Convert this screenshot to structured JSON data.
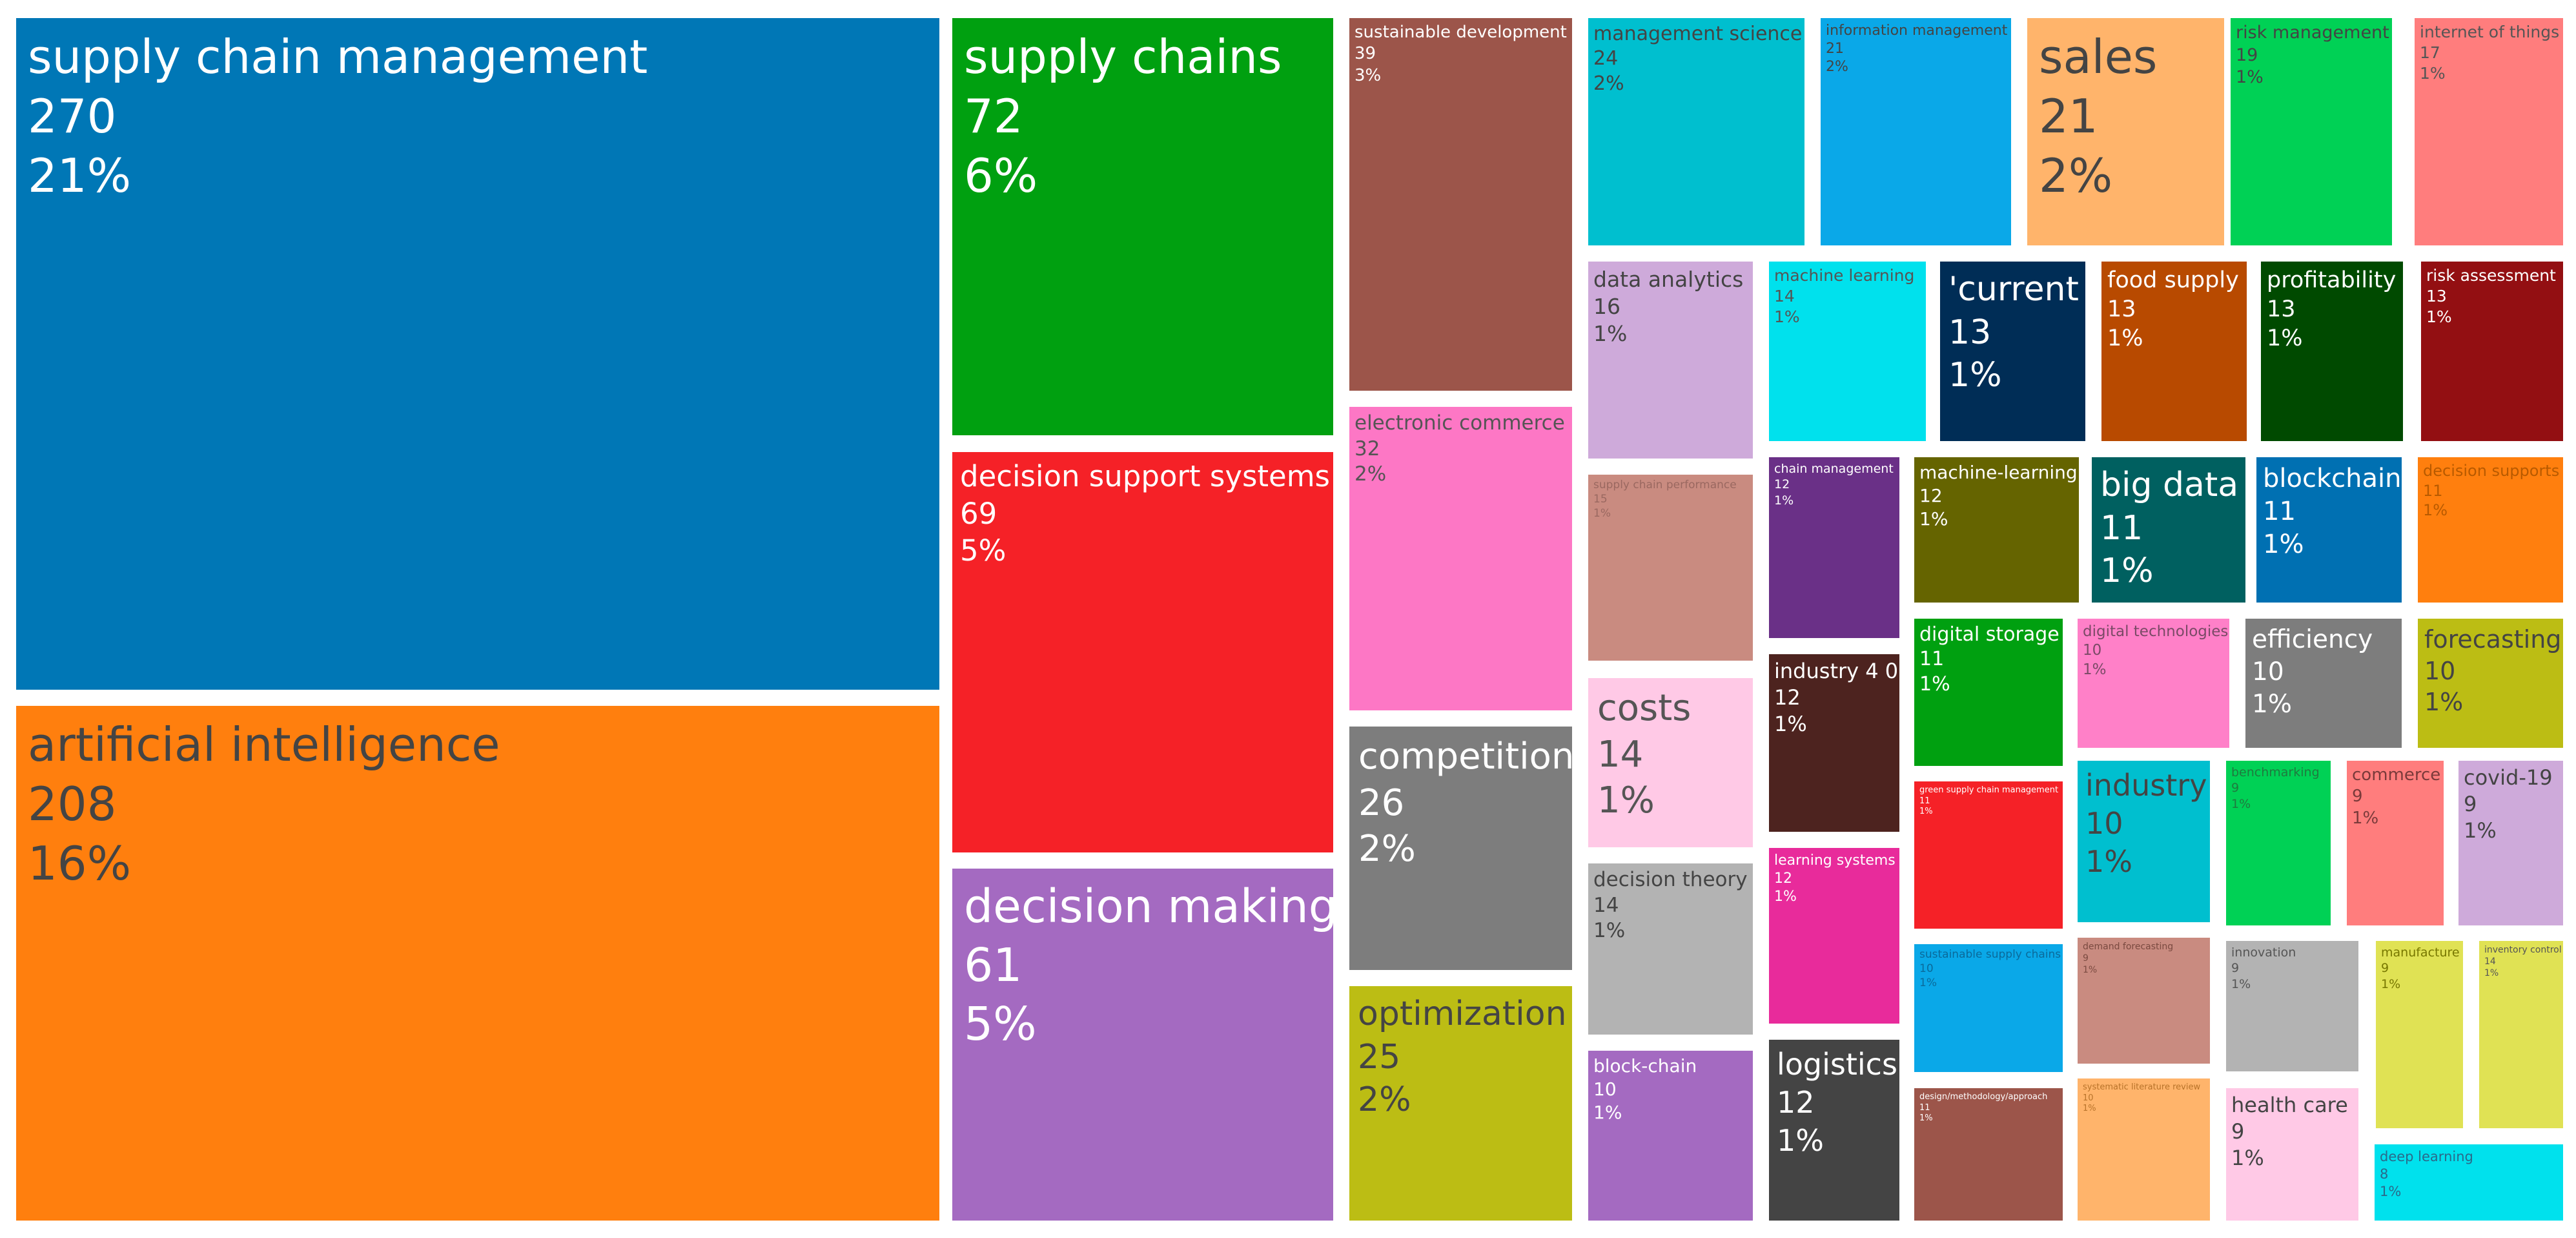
{
  "chart_data": {
    "type": "treemap",
    "title": "",
    "items": [
      {
        "label": "supply chain management",
        "value": 270,
        "percent": "21%",
        "color": "#0077b6",
        "text_color": "#ffffff"
      },
      {
        "label": "artificial intelligence",
        "value": 208,
        "percent": "16%",
        "color": "#ff7f0e",
        "text_color": "#444444"
      },
      {
        "label": "supply chains",
        "value": 72,
        "percent": "6%",
        "color": "#00a010",
        "text_color": "#ffffff"
      },
      {
        "label": "decision support systems",
        "value": 69,
        "percent": "5%",
        "color": "#f52127",
        "text_color": "#ffffff"
      },
      {
        "label": "decision making",
        "value": 61,
        "percent": "5%",
        "color": "#a46ac1",
        "text_color": "#ffffff"
      },
      {
        "label": "sustainable development",
        "value": 39,
        "percent": "3%",
        "color": "#9c554a",
        "text_color": "#ffffff"
      },
      {
        "label": "electronic commerce",
        "value": 32,
        "percent": "2%",
        "color": "#fd77c5",
        "text_color": "#555555"
      },
      {
        "label": "competition",
        "value": 26,
        "percent": "2%",
        "color": "#7d7d7d",
        "text_color": "#ffffff"
      },
      {
        "label": "optimization",
        "value": 25,
        "percent": "2%",
        "color": "#bcbd14",
        "text_color": "#444444"
      },
      {
        "label": "management science",
        "value": 24,
        "percent": "2%",
        "color": "#00bfcf",
        "text_color": "#444444"
      },
      {
        "label": "information management",
        "value": 21,
        "percent": "2%",
        "color": "#0aa8e8",
        "text_color": "#444444"
      },
      {
        "label": "sales",
        "value": 21,
        "percent": "2%",
        "color": "#ffb46b",
        "text_color": "#444444"
      },
      {
        "label": "risk management",
        "value": 19,
        "percent": "1%",
        "color": "#00d155",
        "text_color": "#444444"
      },
      {
        "label": "internet of things",
        "value": 17,
        "percent": "1%",
        "color": "#ff7d7d",
        "text_color": "#555555"
      },
      {
        "label": "data analytics",
        "value": 16,
        "percent": "1%",
        "color": "#ceaada",
        "text_color": "#444444"
      },
      {
        "label": "machine learning",
        "value": 14,
        "percent": "1%",
        "color": "#00e1ed",
        "text_color": "#555555"
      },
      {
        "label": "'current",
        "value": 13,
        "percent": "1%",
        "color": "#002d56",
        "text_color": "#ffffff"
      },
      {
        "label": "food supply",
        "value": 13,
        "percent": "1%",
        "color": "#b84a00",
        "text_color": "#ffffff"
      },
      {
        "label": "profitability",
        "value": 13,
        "percent": "1%",
        "color": "#004a00",
        "text_color": "#ffffff"
      },
      {
        "label": "risk assessment",
        "value": 13,
        "percent": "1%",
        "color": "#930f12",
        "text_color": "#ffffff"
      },
      {
        "label": "supply chain performance",
        "value": 15,
        "percent": "1%",
        "color": "#c98b80",
        "text_color": "#9a6860"
      },
      {
        "label": "chain management",
        "value": 12,
        "percent": "1%",
        "color": "#6a3087",
        "text_color": "#ffffff"
      },
      {
        "label": "machine-learning",
        "value": 12,
        "percent": "1%",
        "color": "#656400",
        "text_color": "#ffffff"
      },
      {
        "label": "big data",
        "value": 11,
        "percent": "1%",
        "color": "#006060",
        "text_color": "#ffffff"
      },
      {
        "label": "blockchain",
        "value": 11,
        "percent": "1%",
        "color": "#0070b2",
        "text_color": "#ffffff"
      },
      {
        "label": "decision supports",
        "value": 11,
        "percent": "1%",
        "color": "#ff7f0e",
        "text_color": "#b85a00"
      },
      {
        "label": "costs",
        "value": 14,
        "percent": "1%",
        "color": "#ffc9e6",
        "text_color": "#555555"
      },
      {
        "label": "industry 4 0",
        "value": 12,
        "percent": "1%",
        "color": "#4d231f",
        "text_color": "#ffffff"
      },
      {
        "label": "digital storage",
        "value": 11,
        "percent": "1%",
        "color": "#00a010",
        "text_color": "#ffffff"
      },
      {
        "label": "digital technologies",
        "value": 10,
        "percent": "1%",
        "color": "#ff80c8",
        "text_color": "#7a4a66"
      },
      {
        "label": "efficiency",
        "value": 10,
        "percent": "1%",
        "color": "#7d7d7d",
        "text_color": "#ffffff"
      },
      {
        "label": "forecasting",
        "value": 10,
        "percent": "1%",
        "color": "#bcbd14",
        "text_color": "#444444"
      },
      {
        "label": "decision theory",
        "value": 14,
        "percent": "1%",
        "color": "#b3b3b3",
        "text_color": "#444444"
      },
      {
        "label": "learning systems",
        "value": 12,
        "percent": "1%",
        "color": "#e82b9b",
        "text_color": "#ffffff"
      },
      {
        "label": "green supply chain management",
        "value": 11,
        "percent": "1%",
        "color": "#f52127",
        "text_color": "#ffffff"
      },
      {
        "label": "industry",
        "value": 10,
        "percent": "1%",
        "color": "#00bfcf",
        "text_color": "#444444"
      },
      {
        "label": "benchmarking",
        "value": 9,
        "percent": "1%",
        "color": "#00d155",
        "text_color": "#1f7a3f"
      },
      {
        "label": "commerce",
        "value": 9,
        "percent": "1%",
        "color": "#ff7d7d",
        "text_color": "#7a3a3a"
      },
      {
        "label": "covid-19",
        "value": 9,
        "percent": "1%",
        "color": "#ceaada",
        "text_color": "#444444"
      },
      {
        "label": "block-chain",
        "value": 10,
        "percent": "1%",
        "color": "#a46ac1",
        "text_color": "#ffffff"
      },
      {
        "label": "sustainable supply chains",
        "value": 10,
        "percent": "1%",
        "color": "#0aa8e8",
        "text_color": "#0a6a9a"
      },
      {
        "label": "demand forecasting",
        "value": 9,
        "percent": "1%",
        "color": "#c98b80",
        "text_color": "#7a4a40"
      },
      {
        "label": "innovation",
        "value": 9,
        "percent": "1%",
        "color": "#b3b3b3",
        "text_color": "#555555"
      },
      {
        "label": "manufacture",
        "value": 9,
        "percent": "1%",
        "color": "#e0e254",
        "text_color": "#777700"
      },
      {
        "label": "inventory control",
        "value": 14,
        "percent": "1%",
        "color": "#e0e254",
        "text_color": "#555555"
      },
      {
        "label": "logistics",
        "value": 12,
        "percent": "1%",
        "color": "#444444",
        "text_color": "#ffffff"
      },
      {
        "label": "design/methodology/approach",
        "value": 11,
        "percent": "1%",
        "color": "#9c554a",
        "text_color": "#ffffff"
      },
      {
        "label": "systematic literature review",
        "value": 10,
        "percent": "1%",
        "color": "#ffb46b",
        "text_color": "#b8732a"
      },
      {
        "label": "health care",
        "value": 9,
        "percent": "1%",
        "color": "#ffc9e6",
        "text_color": "#444444"
      },
      {
        "label": "deep learning",
        "value": 8,
        "percent": "1%",
        "color": "#00e1ed",
        "text_color": "#2a6a8a"
      }
    ]
  }
}
